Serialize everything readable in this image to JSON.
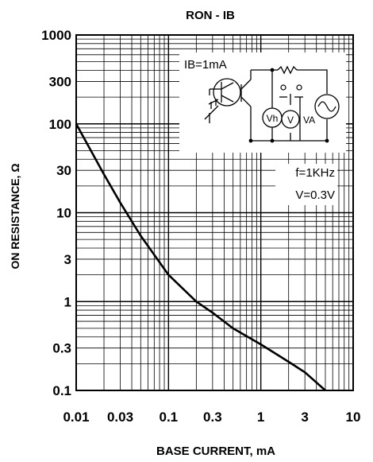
{
  "chart_data": {
    "type": "line",
    "title": "RON - IB",
    "xlabel": "BASE CURRENT, mA",
    "ylabel": "ON RESISTANCE, Ω",
    "x_scale": "log",
    "y_scale": "log",
    "xlim": [
      0.01,
      10
    ],
    "ylim": [
      0.1,
      1000
    ],
    "x_ticks": [
      {
        "value": 0.01,
        "label": "0.01"
      },
      {
        "value": 0.03,
        "label": "0.03"
      },
      {
        "value": 0.1,
        "label": "0.1"
      },
      {
        "value": 0.3,
        "label": "0.3"
      },
      {
        "value": 1,
        "label": "1"
      },
      {
        "value": 3,
        "label": "3"
      },
      {
        "value": 10,
        "label": "10"
      }
    ],
    "y_ticks": [
      {
        "value": 1000,
        "label": "1000"
      },
      {
        "value": 300,
        "label": "300"
      },
      {
        "value": 100,
        "label": "100"
      },
      {
        "value": 30,
        "label": "30"
      },
      {
        "value": 10,
        "label": "10"
      },
      {
        "value": 3,
        "label": "3"
      },
      {
        "value": 1,
        "label": "1"
      },
      {
        "value": 0.3,
        "label": "0.3"
      },
      {
        "value": 0.1,
        "label": "0.1"
      }
    ],
    "grid": true,
    "series": [
      {
        "points": [
          {
            "x": 0.01,
            "y": 100
          },
          {
            "x": 0.02,
            "y": 27
          },
          {
            "x": 0.03,
            "y": 13
          },
          {
            "x": 0.05,
            "y": 5.5
          },
          {
            "x": 0.1,
            "y": 2
          },
          {
            "x": 0.2,
            "y": 1
          },
          {
            "x": 0.3,
            "y": 0.75
          },
          {
            "x": 0.5,
            "y": 0.5
          },
          {
            "x": 1,
            "y": 0.33
          },
          {
            "x": 2,
            "y": 0.21
          },
          {
            "x": 3,
            "y": 0.16
          },
          {
            "x": 5,
            "y": 0.1
          }
        ]
      }
    ],
    "annotations": {
      "condition_f": "f=1KHz",
      "condition_v": "V=0.3V",
      "inset_ib": "IB=1mA",
      "meter_vh": "Vh",
      "meter_v": "V",
      "label_va": "VA"
    }
  }
}
